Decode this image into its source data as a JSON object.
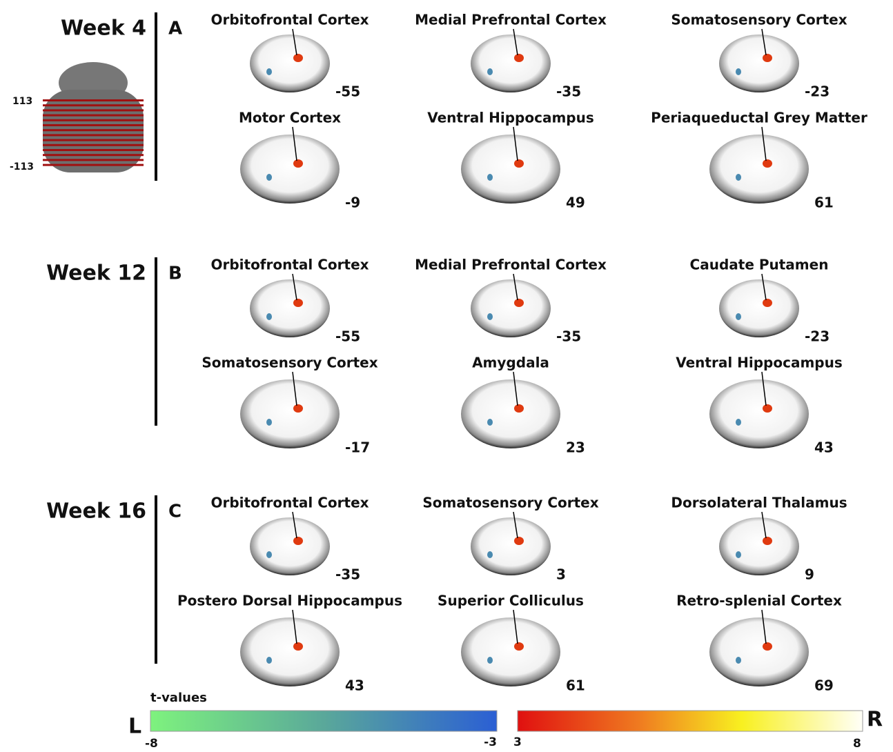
{
  "sidebar": {
    "slice_labels": [
      113,
      -113
    ]
  },
  "rows": [
    {
      "week": "Week 4",
      "letter": "A",
      "slices": [
        {
          "label": "Orbitofrontal Cortex",
          "coord": -55
        },
        {
          "label": "Medial Prefrontal Cortex",
          "coord": -35
        },
        {
          "label": "Somatosensory Cortex",
          "coord": -23
        },
        {
          "label": "Motor Cortex",
          "coord": -9
        },
        {
          "label": "Ventral Hippocampus",
          "coord": 49
        },
        {
          "label": "Periaqueductal Grey Matter",
          "coord": 61
        }
      ]
    },
    {
      "week": "Week 12",
      "letter": "B",
      "slices": [
        {
          "label": "Orbitofrontal Cortex",
          "coord": -55
        },
        {
          "label": "Medial Prefrontal Cortex",
          "coord": -35
        },
        {
          "label": "Caudate Putamen",
          "coord": -23
        },
        {
          "label": "Somatosensory Cortex",
          "coord": -17
        },
        {
          "label": "Amygdala",
          "coord": 23
        },
        {
          "label": "Ventral Hippocampus",
          "coord": 43
        }
      ]
    },
    {
      "week": "Week 16",
      "letter": "C",
      "slices": [
        {
          "label": "Orbitofrontal Cortex",
          "coord": -35
        },
        {
          "label": "Somatosensory Cortex",
          "coord": 3
        },
        {
          "label": "Dorsolateral Thalamus",
          "coord": 9
        },
        {
          "label": "Postero Dorsal Hippocampus",
          "coord": 43
        },
        {
          "label": "Superior Colliculus",
          "coord": 61
        },
        {
          "label": "Retro-splenial Cortex",
          "coord": 69
        }
      ]
    }
  ],
  "colorbar": {
    "title": "t-values",
    "left": {
      "side": "L",
      "ticks": [
        -8,
        -3
      ]
    },
    "right": {
      "side": "R",
      "ticks": [
        3,
        8
      ]
    }
  }
}
